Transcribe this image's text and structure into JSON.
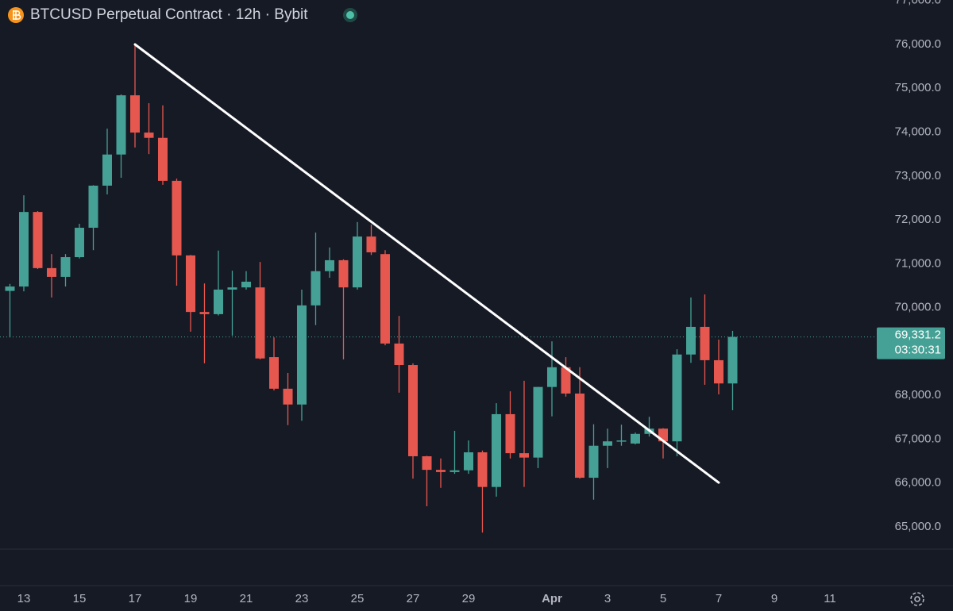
{
  "chart_data": {
    "type": "candlestick",
    "title": "BTCUSD Perpetual Contract · 12h · Bybit",
    "up_color": "#45a195",
    "down_color": "#e5574f",
    "background": "#161a25",
    "x": [
      -0.5,
      0,
      0.5,
      1,
      1.5,
      2,
      2.5,
      3,
      3.5,
      4,
      4.5,
      5,
      5.5,
      6,
      6.5,
      7,
      7.5,
      8,
      8.5,
      9,
      9.5,
      10,
      10.5,
      11,
      11.5,
      12,
      12.5,
      13,
      13.5,
      14,
      14.5,
      15,
      15.5,
      16,
      16.5,
      17,
      17.5,
      18,
      18.5,
      19,
      19.5,
      20,
      20.5,
      21,
      21.5,
      22,
      22.5,
      23,
      23.5,
      24,
      24.5,
      25,
      25.5
    ],
    "open": [
      70380,
      70480,
      72180,
      70900,
      70700,
      71150,
      71820,
      72780,
      73490,
      74840,
      73990,
      73870,
      72890,
      71190,
      69900,
      69850,
      70410,
      70460,
      70460,
      68870,
      68150,
      67790,
      70050,
      70830,
      71080,
      70460,
      71620,
      71220,
      69180,
      68690,
      66610,
      66300,
      66250,
      66290,
      66700,
      65910,
      67570,
      66680,
      66580,
      68190,
      68640,
      68040,
      66120,
      66850,
      66950,
      66900,
      67120,
      67240,
      66950,
      68930,
      69560,
      68800,
      68270
    ],
    "high": [
      70540,
      72560,
      72200,
      71220,
      71220,
      71910,
      72790,
      74080,
      74860,
      76000,
      74660,
      74610,
      72940,
      71200,
      70550,
      71300,
      70840,
      70830,
      71040,
      69320,
      68510,
      70410,
      71710,
      71370,
      71100,
      71950,
      71890,
      71310,
      69810,
      68730,
      66620,
      66560,
      67190,
      66970,
      66740,
      67820,
      68090,
      68330,
      68190,
      69230,
      68870,
      68640,
      67340,
      67240,
      67330,
      67150,
      67510,
      67250,
      69050,
      70230,
      70300,
      69270,
      69470
    ],
    "low": [
      69320,
      70370,
      70880,
      70230,
      70480,
      71120,
      71310,
      72580,
      72960,
      73650,
      73500,
      72800,
      70500,
      69450,
      68730,
      69820,
      69360,
      70410,
      68820,
      68110,
      67320,
      67420,
      69600,
      70680,
      68820,
      70410,
      71200,
      69140,
      68060,
      66100,
      65470,
      65890,
      66210,
      66210,
      64870,
      65690,
      66560,
      65910,
      66340,
      67520,
      67970,
      66100,
      65620,
      66340,
      66850,
      66880,
      67060,
      66560,
      66610,
      68740,
      68240,
      68020,
      67660
    ],
    "close": [
      70480,
      72180,
      70900,
      70700,
      71150,
      71820,
      72780,
      73490,
      74840,
      73990,
      73870,
      72890,
      71190,
      69900,
      69850,
      70410,
      70460,
      70590,
      68840,
      68150,
      67790,
      70050,
      70830,
      71080,
      70460,
      71620,
      71260,
      69180,
      68690,
      66610,
      66300,
      66250,
      66290,
      66700,
      65910,
      67570,
      66680,
      66580,
      68190,
      68640,
      68040,
      66120,
      66850,
      66950,
      66970,
      67120,
      67240,
      66950,
      68930,
      69560,
      68800,
      68270,
      69331.2
    ],
    "xlim": [
      -0.857,
      30.429
    ],
    "xticks": [
      {
        "value": 0,
        "label": "13"
      },
      {
        "value": 2,
        "label": "15"
      },
      {
        "value": 4,
        "label": "17"
      },
      {
        "value": 6,
        "label": "19"
      },
      {
        "value": 8,
        "label": "21"
      },
      {
        "value": 10,
        "label": "23"
      },
      {
        "value": 12,
        "label": "25"
      },
      {
        "value": 14,
        "label": "27"
      },
      {
        "value": 16,
        "label": "29"
      },
      {
        "value": 19,
        "label": "Apr"
      },
      {
        "value": 21,
        "label": "3"
      },
      {
        "value": 23,
        "label": "5"
      },
      {
        "value": 25,
        "label": "7"
      },
      {
        "value": 27,
        "label": "9"
      },
      {
        "value": 29,
        "label": "11"
      }
    ],
    "ylim": [
      64493,
      77013
    ],
    "yticks": [
      {
        "value": 65000,
        "label": "65,000.0"
      },
      {
        "value": 66000,
        "label": "66,000.0"
      },
      {
        "value": 67000,
        "label": "67,000.0"
      },
      {
        "value": 68000,
        "label": "68,000.0"
      },
      {
        "value": 70000,
        "label": "70,000.0"
      },
      {
        "value": 71000,
        "label": "71,000.0"
      },
      {
        "value": 72000,
        "label": "72,000.0"
      },
      {
        "value": 73000,
        "label": "73,000.0"
      },
      {
        "value": 74000,
        "label": "74,000.0"
      },
      {
        "value": 75000,
        "label": "75,000.0"
      },
      {
        "value": 76000,
        "label": "76,000.0"
      },
      {
        "value": 77000,
        "label": "77,000.0"
      }
    ],
    "trendline": {
      "x": [
        4,
        25
      ],
      "values": [
        76000,
        66010
      ],
      "color": "#ffffff"
    },
    "last_price": {
      "value": 69331.2,
      "label": "69,331.2"
    },
    "countdown": "03:30:31"
  }
}
